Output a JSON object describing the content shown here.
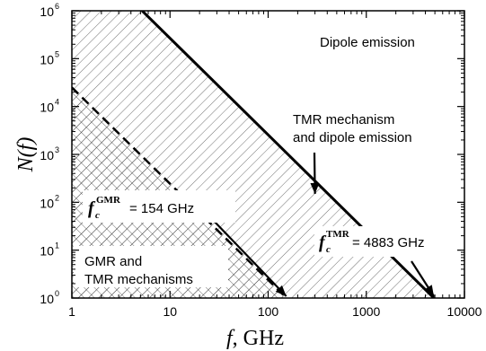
{
  "chart_data": {
    "type": "line",
    "x_scale": "log",
    "y_scale": "log",
    "xlim": [
      1,
      10000
    ],
    "ylim": [
      1,
      1000000
    ],
    "x_ticks": [
      1,
      10,
      100,
      1000,
      10000
    ],
    "x_tick_labels": [
      "1",
      "10",
      "100",
      "1000",
      "10000"
    ],
    "y_ticks": [
      1,
      10,
      100,
      1000,
      10000,
      100000,
      1000000
    ],
    "y_tick_labels": [
      {
        "base": "10",
        "exp": "0"
      },
      {
        "base": "10",
        "exp": "1"
      },
      {
        "base": "10",
        "exp": "2"
      },
      {
        "base": "10",
        "exp": "3"
      },
      {
        "base": "10",
        "exp": "4"
      },
      {
        "base": "10",
        "exp": "5"
      },
      {
        "base": "10",
        "exp": "6"
      }
    ],
    "xlabel": {
      "var": "f",
      "unit": ", GHz"
    },
    "ylabel": "N(f)",
    "series": [
      {
        "style": "solid-thick",
        "x": [
          5.2,
          4883
        ],
        "y": [
          1000000,
          1
        ]
      },
      {
        "style": "dashed",
        "x": [
          1,
          154
        ],
        "y": [
          25000,
          1
        ]
      }
    ],
    "regions": [
      {
        "label": "Dipole emission",
        "fill": "none"
      },
      {
        "label": "TMR mechanism and dipole emission",
        "fill": "single-hatch"
      },
      {
        "label": "GMR and TMR mechanisms",
        "fill": "cross-hatch"
      }
    ],
    "annotations": {
      "dipole": "Dipole emission",
      "tmr_line1": "TMR mechanism",
      "tmr_line2": "and dipole emission",
      "gmr_line1": "GMR and",
      "gmr_line2": "TMR mechanisms",
      "fc_symbol": "f",
      "fc_sub": "c",
      "fc_gmr_sup": "GMR",
      "fc_gmr_value": "= 154 GHz",
      "fc_tmr_sup": "TMR",
      "fc_tmr_value": "= 4883 GHz"
    }
  }
}
